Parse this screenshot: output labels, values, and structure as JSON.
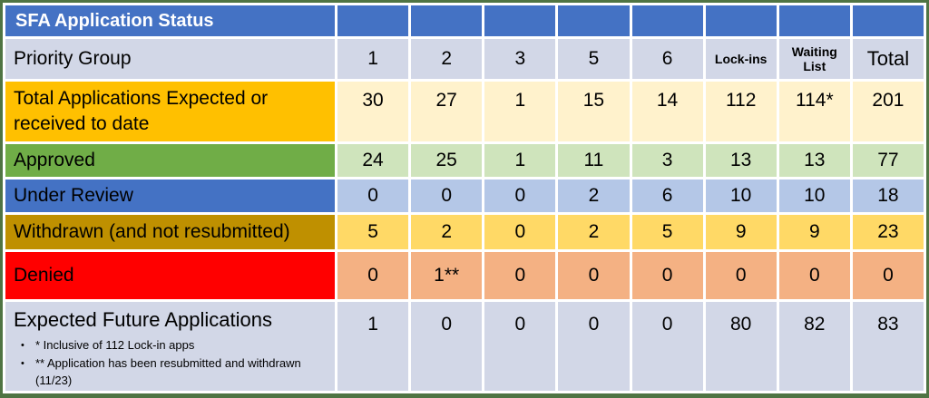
{
  "chart_data": {
    "type": "table",
    "title": "SFA Application Status",
    "columns": [
      "Priority Group",
      "1",
      "2",
      "3",
      "5",
      "6",
      "Lock-ins",
      "Waiting List",
      "Total"
    ],
    "rows": [
      {
        "label": "Total Applications Expected or received to date",
        "values": [
          "30",
          "27",
          "1",
          "15",
          "14",
          "112",
          "114*",
          "201"
        ]
      },
      {
        "label": "Approved",
        "values": [
          "24",
          "25",
          "1",
          "11",
          "3",
          "13",
          "13",
          "77"
        ]
      },
      {
        "label": "Under Review",
        "values": [
          "0",
          "0",
          "0",
          "2",
          "6",
          "10",
          "10",
          "18"
        ]
      },
      {
        "label": "Withdrawn (and not resubmitted)",
        "values": [
          "5",
          "2",
          "0",
          "2",
          "5",
          "9",
          "9",
          "23"
        ]
      },
      {
        "label": "Denied",
        "values": [
          "0",
          "1**",
          "0",
          "0",
          "0",
          "0",
          "0",
          "0"
        ]
      },
      {
        "label": "Expected Future Applications",
        "values": [
          "1",
          "0",
          "0",
          "0",
          "0",
          "80",
          "82",
          "83"
        ]
      }
    ],
    "footnotes": [
      "* Inclusive of 112 Lock-in apps",
      "** Application has been resubmitted and withdrawn",
      "(11/23)"
    ],
    "legend_position": "none",
    "grid": "white cell gaps"
  },
  "colors": {
    "header_blue": "#4472C4",
    "lavender": "#D2D7E7",
    "gold": "#FFC000",
    "cream": "#FFF2CC",
    "green": "#70AD47",
    "light_green": "#CFE4BC",
    "light_blue": "#B4C7E7",
    "dark_gold": "#BF9000",
    "yellow": "#FFD966",
    "red": "#FF0000",
    "light_orange": "#F4B183",
    "frame_green": "#4F7443",
    "title_text": "#FFFFFF",
    "body_text": "#000000"
  }
}
